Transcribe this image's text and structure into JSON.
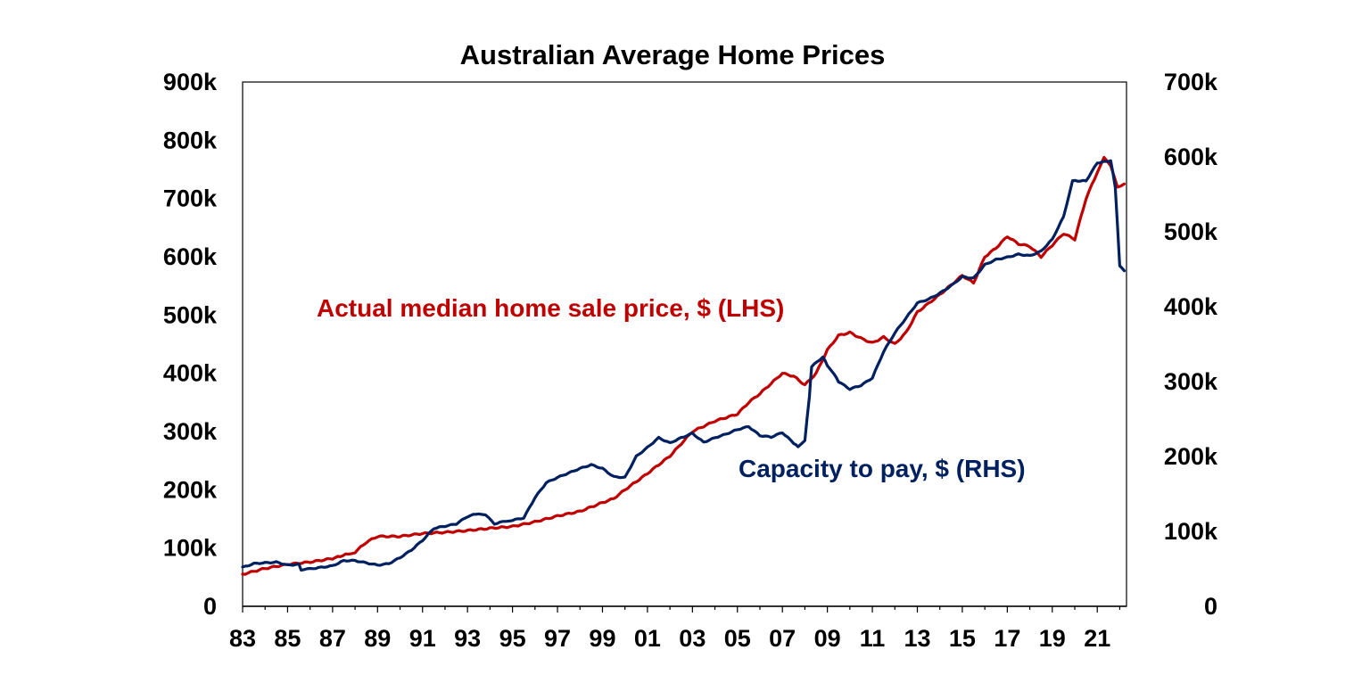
{
  "chart_data": {
    "type": "line",
    "title": "Australian Average Home Prices",
    "xlabel": "",
    "ylabel": "",
    "grid": false,
    "x_tick_labels": [
      "83",
      "85",
      "87",
      "89",
      "91",
      "93",
      "95",
      "97",
      "99",
      "01",
      "03",
      "05",
      "07",
      "09",
      "11",
      "13",
      "15",
      "17",
      "19",
      "21"
    ],
    "x_ticks_years": [
      1983,
      1985,
      1987,
      1989,
      1991,
      1993,
      1995,
      1997,
      1999,
      2001,
      2003,
      2005,
      2007,
      2009,
      2011,
      2013,
      2015,
      2017,
      2019,
      2021
    ],
    "xlim": [
      1983,
      2022.3
    ],
    "y_left": {
      "ylim": [
        0,
        900000
      ],
      "ticks": [
        0,
        100000,
        200000,
        300000,
        400000,
        500000,
        600000,
        700000,
        800000,
        900000
      ],
      "tick_labels": [
        "0",
        "100k",
        "200k",
        "300k",
        "400k",
        "500k",
        "600k",
        "700k",
        "800k",
        "900k"
      ]
    },
    "y_right": {
      "ylim": [
        0,
        700000
      ],
      "ticks": [
        0,
        100000,
        200000,
        300000,
        400000,
        500000,
        600000,
        700000
      ],
      "tick_labels": [
        "0",
        "100k",
        "200k",
        "300k",
        "400k",
        "500k",
        "600k",
        "700k"
      ]
    },
    "series": [
      {
        "name": "Actual median home sale price, $ (LHS)",
        "axis": "left",
        "color": "#c00000",
        "points": [
          [
            1983.0,
            55000
          ],
          [
            1984.0,
            65000
          ],
          [
            1985.0,
            72000
          ],
          [
            1986.0,
            76000
          ],
          [
            1987.0,
            82000
          ],
          [
            1987.7,
            90000
          ],
          [
            1988.0,
            93000
          ],
          [
            1988.5,
            110000
          ],
          [
            1989.0,
            120000
          ],
          [
            1990.0,
            120000
          ],
          [
            1991.0,
            125000
          ],
          [
            1992.0,
            127000
          ],
          [
            1993.0,
            130000
          ],
          [
            1994.0,
            134000
          ],
          [
            1995.0,
            137000
          ],
          [
            1996.0,
            145000
          ],
          [
            1997.0,
            155000
          ],
          [
            1998.0,
            163000
          ],
          [
            1999.0,
            178000
          ],
          [
            1999.5,
            185000
          ],
          [
            2000.0,
            200000
          ],
          [
            2001.0,
            228000
          ],
          [
            2002.0,
            258000
          ],
          [
            2003.0,
            300000
          ],
          [
            2004.0,
            318000
          ],
          [
            2005.0,
            330000
          ],
          [
            2005.5,
            350000
          ],
          [
            2006.0,
            365000
          ],
          [
            2007.0,
            400000
          ],
          [
            2007.5,
            395000
          ],
          [
            2008.0,
            380000
          ],
          [
            2008.5,
            400000
          ],
          [
            2009.0,
            440000
          ],
          [
            2009.5,
            465000
          ],
          [
            2010.0,
            470000
          ],
          [
            2010.5,
            460000
          ],
          [
            2011.0,
            452000
          ],
          [
            2011.5,
            462000
          ],
          [
            2012.0,
            450000
          ],
          [
            2012.5,
            470000
          ],
          [
            2013.0,
            505000
          ],
          [
            2014.0,
            535000
          ],
          [
            2015.0,
            568000
          ],
          [
            2015.5,
            555000
          ],
          [
            2016.0,
            600000
          ],
          [
            2016.5,
            615000
          ],
          [
            2017.0,
            635000
          ],
          [
            2017.5,
            622000
          ],
          [
            2018.0,
            618000
          ],
          [
            2018.5,
            600000
          ],
          [
            2019.0,
            620000
          ],
          [
            2019.5,
            640000
          ],
          [
            2020.0,
            630000
          ],
          [
            2020.5,
            700000
          ],
          [
            2021.0,
            745000
          ],
          [
            2021.3,
            770000
          ],
          [
            2021.6,
            755000
          ],
          [
            2021.9,
            720000
          ],
          [
            2022.2,
            725000
          ]
        ]
      },
      {
        "name": "Capacity to pay, $ (RHS)",
        "axis": "right",
        "color": "#002060",
        "points": [
          [
            1983.0,
            52000
          ],
          [
            1983.5,
            57000
          ],
          [
            1984.0,
            58000
          ],
          [
            1984.5,
            59000
          ],
          [
            1985.0,
            55000
          ],
          [
            1985.5,
            56000
          ],
          [
            1985.6,
            49000
          ],
          [
            1986.0,
            50000
          ],
          [
            1987.0,
            54000
          ],
          [
            1987.5,
            61000
          ],
          [
            1988.0,
            61000
          ],
          [
            1988.5,
            58000
          ],
          [
            1989.0,
            55000
          ],
          [
            1989.5,
            57000
          ],
          [
            1990.0,
            65000
          ],
          [
            1990.5,
            75000
          ],
          [
            1991.0,
            88000
          ],
          [
            1991.5,
            104000
          ],
          [
            1992.0,
            107000
          ],
          [
            1992.5,
            110000
          ],
          [
            1993.0,
            120000
          ],
          [
            1993.5,
            124000
          ],
          [
            1993.8,
            122000
          ],
          [
            1994.2,
            110000
          ],
          [
            1994.7,
            114000
          ],
          [
            1995.0,
            115000
          ],
          [
            1995.5,
            118000
          ],
          [
            1996.0,
            145000
          ],
          [
            1996.5,
            165000
          ],
          [
            1997.0,
            172000
          ],
          [
            1997.5,
            178000
          ],
          [
            1998.0,
            184000
          ],
          [
            1998.5,
            189000
          ],
          [
            1999.0,
            184000
          ],
          [
            1999.5,
            173000
          ],
          [
            2000.0,
            172000
          ],
          [
            2000.5,
            200000
          ],
          [
            2001.0,
            212000
          ],
          [
            2001.5,
            225000
          ],
          [
            2002.0,
            218000
          ],
          [
            2002.5,
            225000
          ],
          [
            2003.0,
            231000
          ],
          [
            2003.5,
            219000
          ],
          [
            2004.0,
            225000
          ],
          [
            2004.5,
            230000
          ],
          [
            2005.0,
            236000
          ],
          [
            2005.5,
            240000
          ],
          [
            2006.0,
            228000
          ],
          [
            2006.5,
            226000
          ],
          [
            2007.0,
            232000
          ],
          [
            2007.5,
            218000
          ],
          [
            2007.7,
            213000
          ],
          [
            2008.0,
            222000
          ],
          [
            2008.2,
            280000
          ],
          [
            2008.3,
            320000
          ],
          [
            2008.8,
            333000
          ],
          [
            2009.0,
            322000
          ],
          [
            2009.3,
            310000
          ],
          [
            2009.5,
            300000
          ],
          [
            2010.0,
            290000
          ],
          [
            2010.5,
            295000
          ],
          [
            2011.0,
            305000
          ],
          [
            2011.5,
            340000
          ],
          [
            2012.0,
            365000
          ],
          [
            2012.5,
            385000
          ],
          [
            2013.0,
            405000
          ],
          [
            2013.5,
            410000
          ],
          [
            2014.0,
            418000
          ],
          [
            2014.5,
            428000
          ],
          [
            2015.0,
            440000
          ],
          [
            2015.5,
            438000
          ],
          [
            2016.0,
            456000
          ],
          [
            2016.5,
            463000
          ],
          [
            2017.0,
            466000
          ],
          [
            2017.5,
            470000
          ],
          [
            2018.0,
            468000
          ],
          [
            2018.5,
            474000
          ],
          [
            2019.0,
            490000
          ],
          [
            2019.5,
            520000
          ],
          [
            2019.9,
            568000
          ],
          [
            2020.5,
            568000
          ],
          [
            2021.0,
            592000
          ],
          [
            2021.6,
            595000
          ],
          [
            2021.8,
            560000
          ],
          [
            2022.0,
            455000
          ],
          [
            2022.2,
            448000
          ]
        ]
      }
    ],
    "annotations": [
      {
        "text": "Actual median home sale price, $ (LHS)",
        "color": "#c00000"
      },
      {
        "text": "Capacity to pay, $ (RHS)",
        "color": "#002060"
      }
    ]
  }
}
